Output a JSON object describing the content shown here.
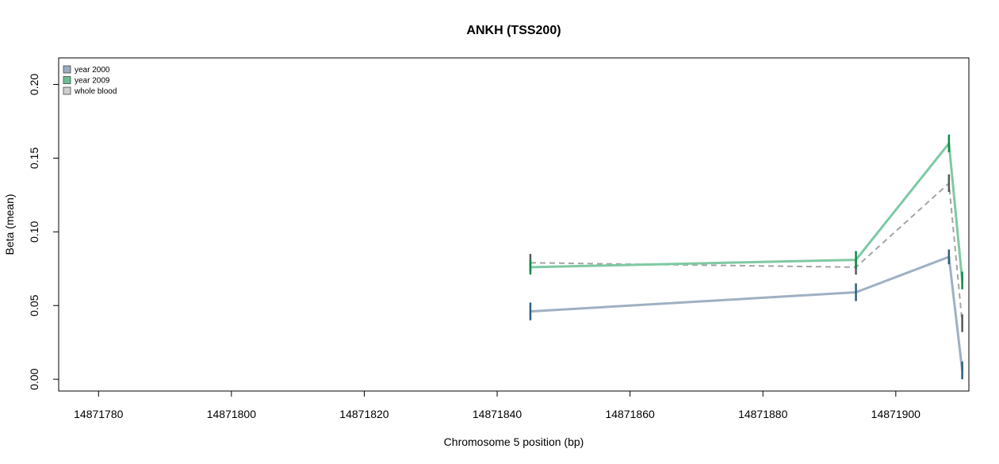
{
  "chart_data": {
    "type": "line",
    "title": "ANKH (TSS200)",
    "xlabel": "Chromosome 5 position (bp)",
    "ylabel": "Beta (mean)",
    "xlim": [
      14871774,
      14871911
    ],
    "ylim": [
      -0.008,
      0.218
    ],
    "x_ticks": [
      14871780,
      14871800,
      14871820,
      14871840,
      14871860,
      14871880,
      14871900
    ],
    "x_tick_labels": [
      "14871780",
      "14871800",
      "14871820",
      "14871840",
      "14871860",
      "14871880",
      "14871900"
    ],
    "y_ticks": [
      0,
      0.05,
      0.1,
      0.15,
      0.2
    ],
    "y_tick_labels": [
      "0.00",
      "0.05",
      "0.10",
      "0.15",
      "0.20"
    ],
    "grid": false,
    "legend_position": "top-left",
    "x": [
      14871845,
      14871894,
      14871908,
      14871910
    ],
    "series": [
      {
        "name": "year 2000",
        "values": [
          0.046,
          0.059,
          0.083,
          0.006
        ],
        "errors": [
          0.006,
          0.006,
          0.005,
          0.006
        ],
        "color": "#9fb0c2",
        "bar_color": "#2e5e80",
        "legend_color": "#9aabbd",
        "dash": "none"
      },
      {
        "name": "year 2009",
        "values": [
          0.076,
          0.081,
          0.16,
          0.067
        ],
        "errors": [
          0.005,
          0.006,
          0.006,
          0.006
        ],
        "color": "#7fc9a2",
        "bar_color": "#0d8a48",
        "legend_color": "#6cbf94",
        "dash": "none"
      },
      {
        "name": "whole blood",
        "values": [
          0.079,
          0.076,
          0.133,
          0.038
        ],
        "errors": [
          0.006,
          0.005,
          0.006,
          0.006
        ],
        "color": "#a5a5a5",
        "bar_color": "#595959",
        "legend_color": "#cfcfcf",
        "dash": "dashed"
      }
    ]
  }
}
